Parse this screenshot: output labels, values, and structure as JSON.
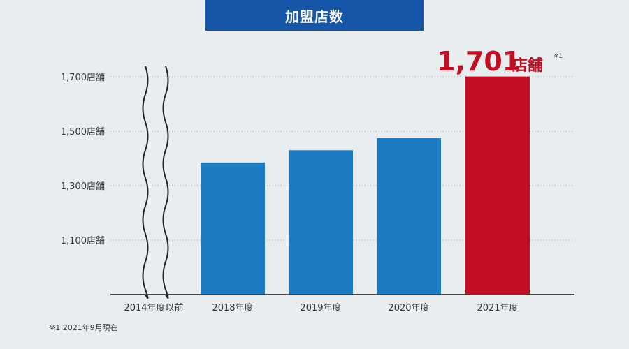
{
  "header": {
    "title": "加盟店数"
  },
  "footnote": "※1 2021年9月現在",
  "highlight": {
    "value_text": "1,701",
    "unit": "店舗",
    "note": "※1"
  },
  "colors": {
    "bar": "#1b7cc4",
    "highlight": "#c30d23",
    "title_bg": "#1556a8",
    "axis": "#444444",
    "grid": "#999999"
  },
  "chart_data": {
    "type": "bar",
    "title": "加盟店数",
    "categories": [
      "2014年度以前",
      "2018年度",
      "2019年度",
      "2020年度",
      "2021年度"
    ],
    "values": [
      null,
      1385,
      1430,
      1475,
      1701
    ],
    "y_ticks": [
      1100,
      1300,
      1500,
      1700
    ],
    "y_tick_labels": [
      "1,100店舗",
      "1,300店舗",
      "1,500店舗",
      "1,700店舗"
    ],
    "ylim": [
      900,
      1700
    ],
    "grid": true,
    "axis_break": "2014年度以前",
    "highlight_index": 4
  }
}
